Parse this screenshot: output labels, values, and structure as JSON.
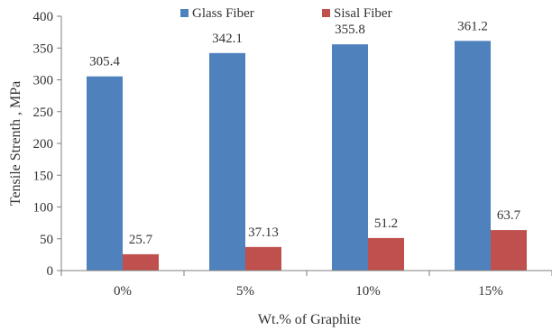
{
  "chart_data": {
    "type": "bar",
    "categories": [
      "0%",
      "5%",
      "10%",
      "15%"
    ],
    "series": [
      {
        "name": "Glass Fiber",
        "color": "#4f81bd",
        "values": [
          305.4,
          342.1,
          355.8,
          361.2
        ],
        "labels": [
          "305.4",
          "342.1",
          "355.8",
          "361.2"
        ]
      },
      {
        "name": "Sisal Fiber",
        "color": "#c0504d",
        "values": [
          25.7,
          37.13,
          51.2,
          63.7
        ],
        "labels": [
          "25.7",
          "37.13",
          "51.2",
          "63.7"
        ]
      }
    ],
    "xlabel": "Wt.% of Graphite",
    "ylabel": "Tensile Strenth , MPa",
    "ylim": [
      0,
      400
    ],
    "yticks": [
      0,
      50,
      100,
      150,
      200,
      250,
      300,
      350,
      400
    ],
    "grid": false,
    "legend": "top-center"
  }
}
